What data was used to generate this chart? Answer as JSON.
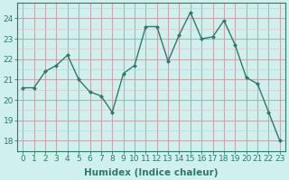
{
  "x": [
    0,
    1,
    2,
    3,
    4,
    5,
    6,
    7,
    8,
    9,
    10,
    11,
    12,
    13,
    14,
    15,
    16,
    17,
    18,
    19,
    20,
    21,
    22,
    23
  ],
  "y": [
    20.6,
    20.6,
    21.4,
    21.7,
    22.2,
    21.0,
    20.4,
    20.2,
    19.4,
    21.3,
    21.7,
    23.6,
    23.6,
    21.9,
    23.2,
    24.3,
    23.0,
    23.1,
    23.9,
    22.7,
    21.1,
    20.8,
    19.4,
    18.0
  ],
  "line_color": "#2d7a6e",
  "marker": "D",
  "marker_size": 2.0,
  "bg_color": "#cff0ec",
  "grid_major_color": "#c8a8b0",
  "grid_minor_color": "#ddc8cc",
  "xlabel": "Humidex (Indice chaleur)",
  "xlabel_fontsize": 7.5,
  "yticks": [
    18,
    19,
    20,
    21,
    22,
    23,
    24
  ],
  "xticks": [
    0,
    1,
    2,
    3,
    4,
    5,
    6,
    7,
    8,
    9,
    10,
    11,
    12,
    13,
    14,
    15,
    16,
    17,
    18,
    19,
    20,
    21,
    22,
    23
  ],
  "ylim": [
    17.5,
    24.75
  ],
  "xlim": [
    -0.5,
    23.5
  ],
  "tick_fontsize": 6.5,
  "line_width": 1.0,
  "tick_color": "#2d7a6e",
  "spine_color": "#2d7a6e",
  "fig_width": 3.2,
  "fig_height": 2.0,
  "dpi": 100
}
